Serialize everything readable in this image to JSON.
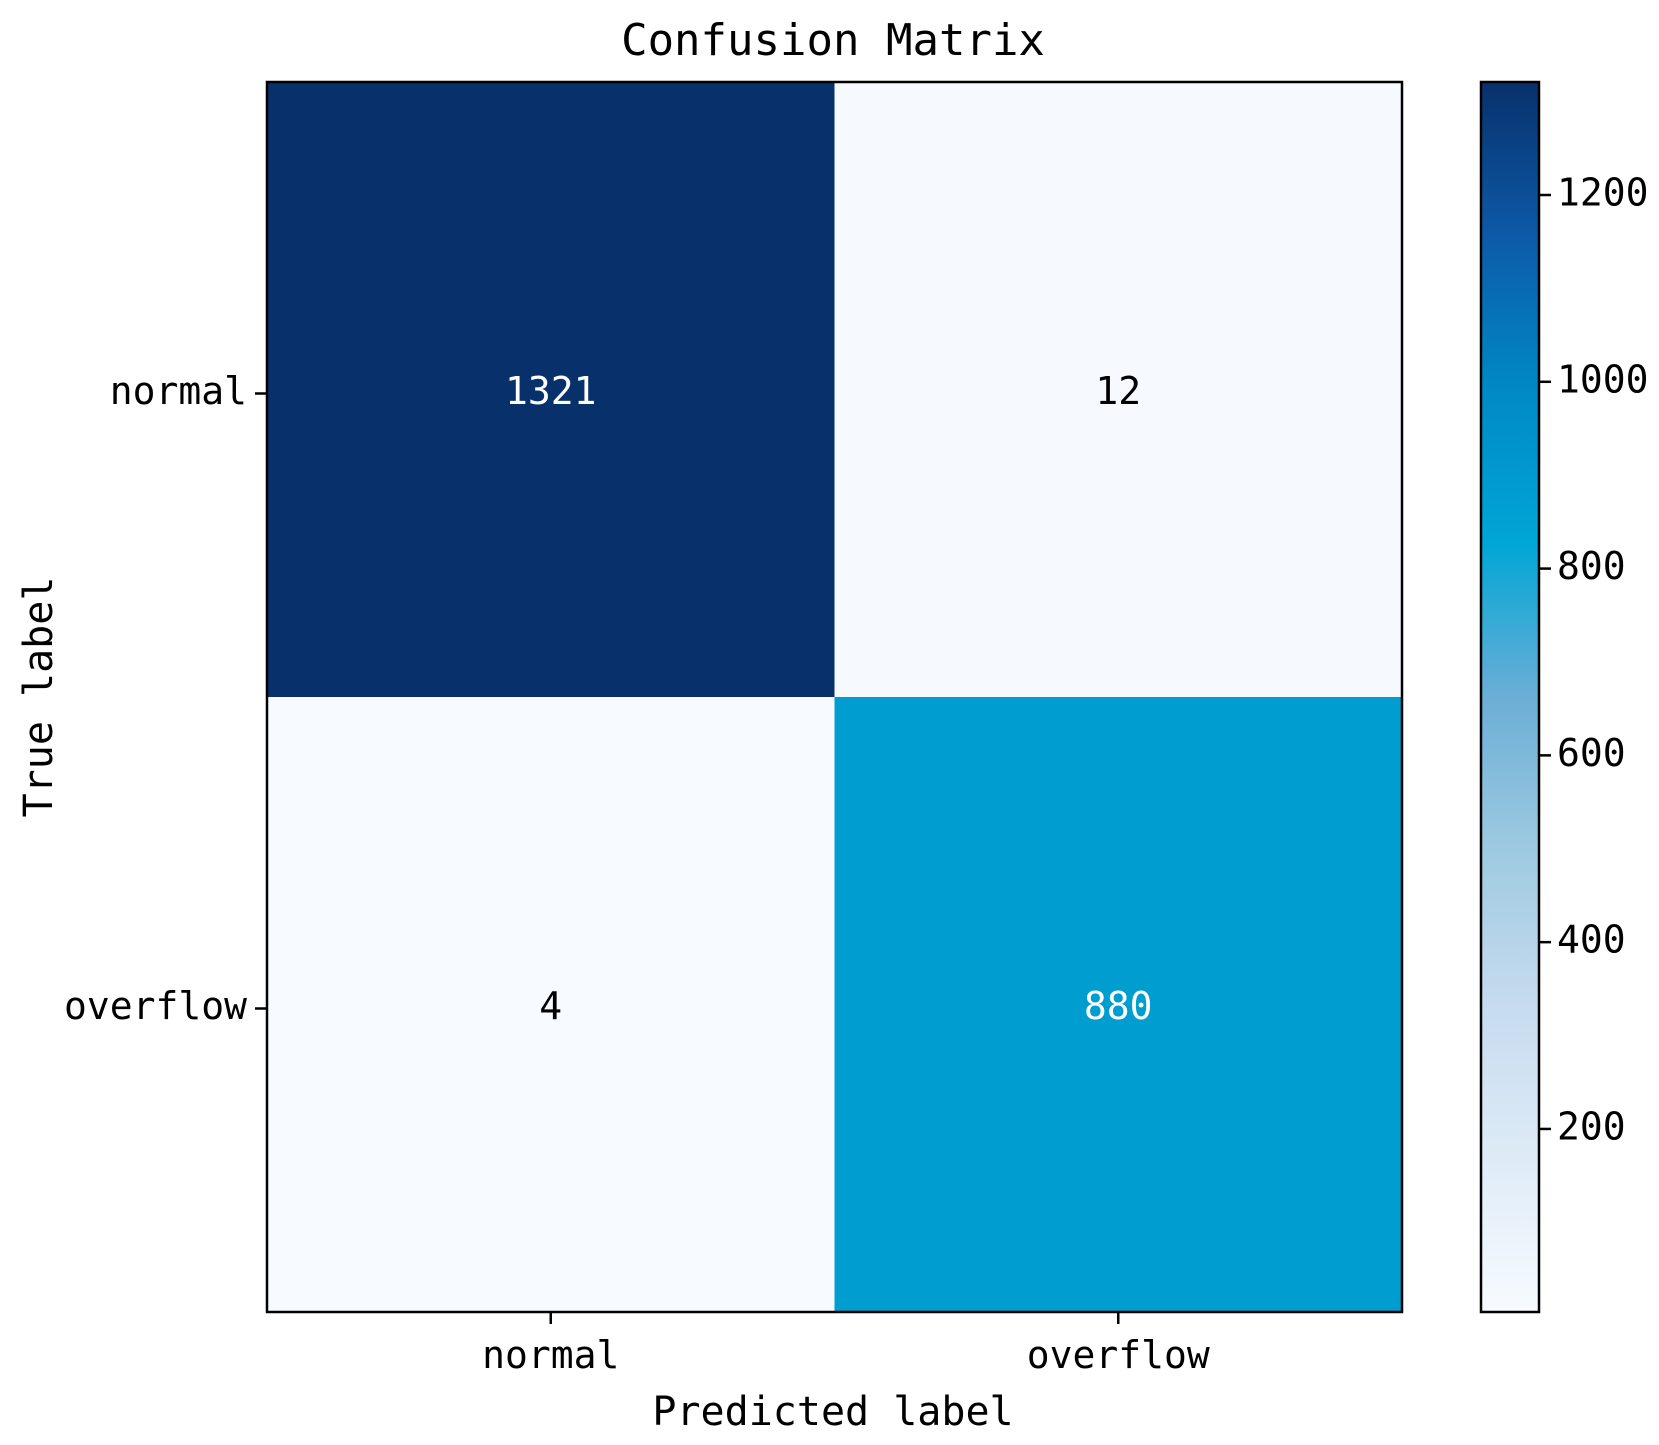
{
  "chart_data": {
    "type": "heatmap",
    "title": "Confusion Matrix",
    "xlabel": "Predicted label",
    "ylabel": "True label",
    "x_categories": [
      "normal",
      "overflow"
    ],
    "y_categories": [
      "normal",
      "overflow"
    ],
    "values": [
      [
        1321,
        12
      ],
      [
        4,
        880
      ]
    ],
    "colorbar": {
      "range": [
        4,
        1321
      ],
      "ticks": [
        200,
        400,
        600,
        800,
        1000,
        1200
      ],
      "colormap": "Blues",
      "colors": [
        "#f7fbff",
        "#deebf7",
        "#c6dbef",
        "#9ecae1",
        "#6baed6",
        "#00a6d6",
        "#0089c6",
        "#0d5aa8",
        "#08306b"
      ]
    },
    "text_colors": {
      "light": "#ffffff",
      "dark": "#000000"
    }
  }
}
